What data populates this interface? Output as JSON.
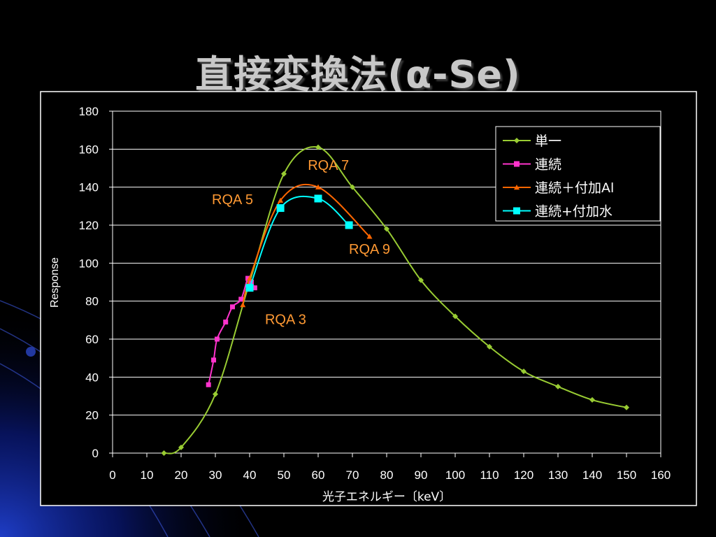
{
  "slide": {
    "title": "直接変換法(α-Se)"
  },
  "colors": {
    "background": "#000000",
    "grid": "#ffffff",
    "text": "#ffffff",
    "annotation": "#ff9933"
  },
  "chart_data": {
    "type": "line",
    "title": "",
    "xlabel": "光子エネルギー〔keV〕",
    "ylabel": "Response",
    "xlim": [
      0,
      160
    ],
    "ylim": [
      0,
      180
    ],
    "xticks": [
      0,
      10,
      20,
      30,
      40,
      50,
      60,
      70,
      80,
      90,
      100,
      110,
      120,
      130,
      140,
      150,
      160
    ],
    "yticks": [
      0,
      20,
      40,
      60,
      80,
      100,
      120,
      140,
      160,
      180
    ],
    "grid": "horizontal",
    "legend_position": "top-right",
    "series": [
      {
        "name": "単一",
        "color": "#99cc33",
        "marker": "diamond",
        "x": [
          15,
          20,
          30,
          40,
          50,
          60,
          70,
          80,
          90,
          100,
          110,
          120,
          130,
          140,
          150
        ],
        "y": [
          0,
          3,
          31,
          90,
          147,
          161,
          140,
          118,
          91,
          72,
          56,
          43,
          35,
          28,
          24
        ]
      },
      {
        "name": "連続",
        "color": "#ff33cc",
        "marker": "square",
        "x": [
          28,
          29.5,
          30.5,
          33,
          35,
          37.5,
          39.5,
          40.5,
          41.5
        ],
        "y": [
          36,
          49,
          60,
          69,
          77,
          81,
          92,
          90,
          87
        ]
      },
      {
        "name": "連続+付加Al",
        "color": "#ff6600",
        "marker": "triangle",
        "x": [
          38,
          40,
          49,
          60,
          75
        ],
        "y": [
          78,
          92,
          133,
          140,
          114
        ]
      },
      {
        "name": "連続+付加水",
        "color": "#00ffff",
        "marker": "square",
        "x": [
          40,
          49,
          60,
          69
        ],
        "y": [
          87,
          129,
          134,
          120
        ]
      }
    ],
    "legend_labels": [
      "単一",
      "連続",
      "連続＋付加Al",
      "連続+付加水"
    ],
    "annotations": [
      {
        "text": "RQA 7",
        "x": 63,
        "y": 149
      },
      {
        "text": "RQA 5",
        "x": 35,
        "y": 131
      },
      {
        "text": "RQA 9",
        "x": 75,
        "y": 105
      },
      {
        "text": "RQA 3",
        "x": 50.5,
        "y": 68
      }
    ]
  }
}
